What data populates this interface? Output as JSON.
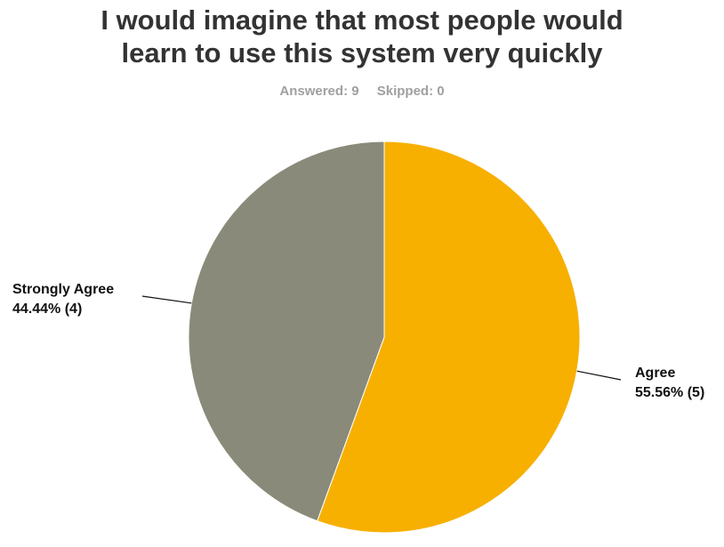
{
  "header": {
    "title_line1": "I would imagine that most people would",
    "title_line2": "learn to use this system very quickly",
    "answered": "Answered: 9",
    "skipped": "Skipped: 0"
  },
  "chart_data": {
    "type": "pie",
    "title": "I would imagine that most people would learn to use this system very quickly",
    "slices": [
      {
        "name": "Agree",
        "value": 55.56,
        "count": 5,
        "label_pct": "55.56% (5)",
        "color": "#f7b000"
      },
      {
        "name": "Strongly Agree",
        "value": 44.44,
        "count": 4,
        "label_pct": "44.44% (4)",
        "color": "#8a8a7a"
      }
    ],
    "start": "12 o'clock, clockwise"
  }
}
